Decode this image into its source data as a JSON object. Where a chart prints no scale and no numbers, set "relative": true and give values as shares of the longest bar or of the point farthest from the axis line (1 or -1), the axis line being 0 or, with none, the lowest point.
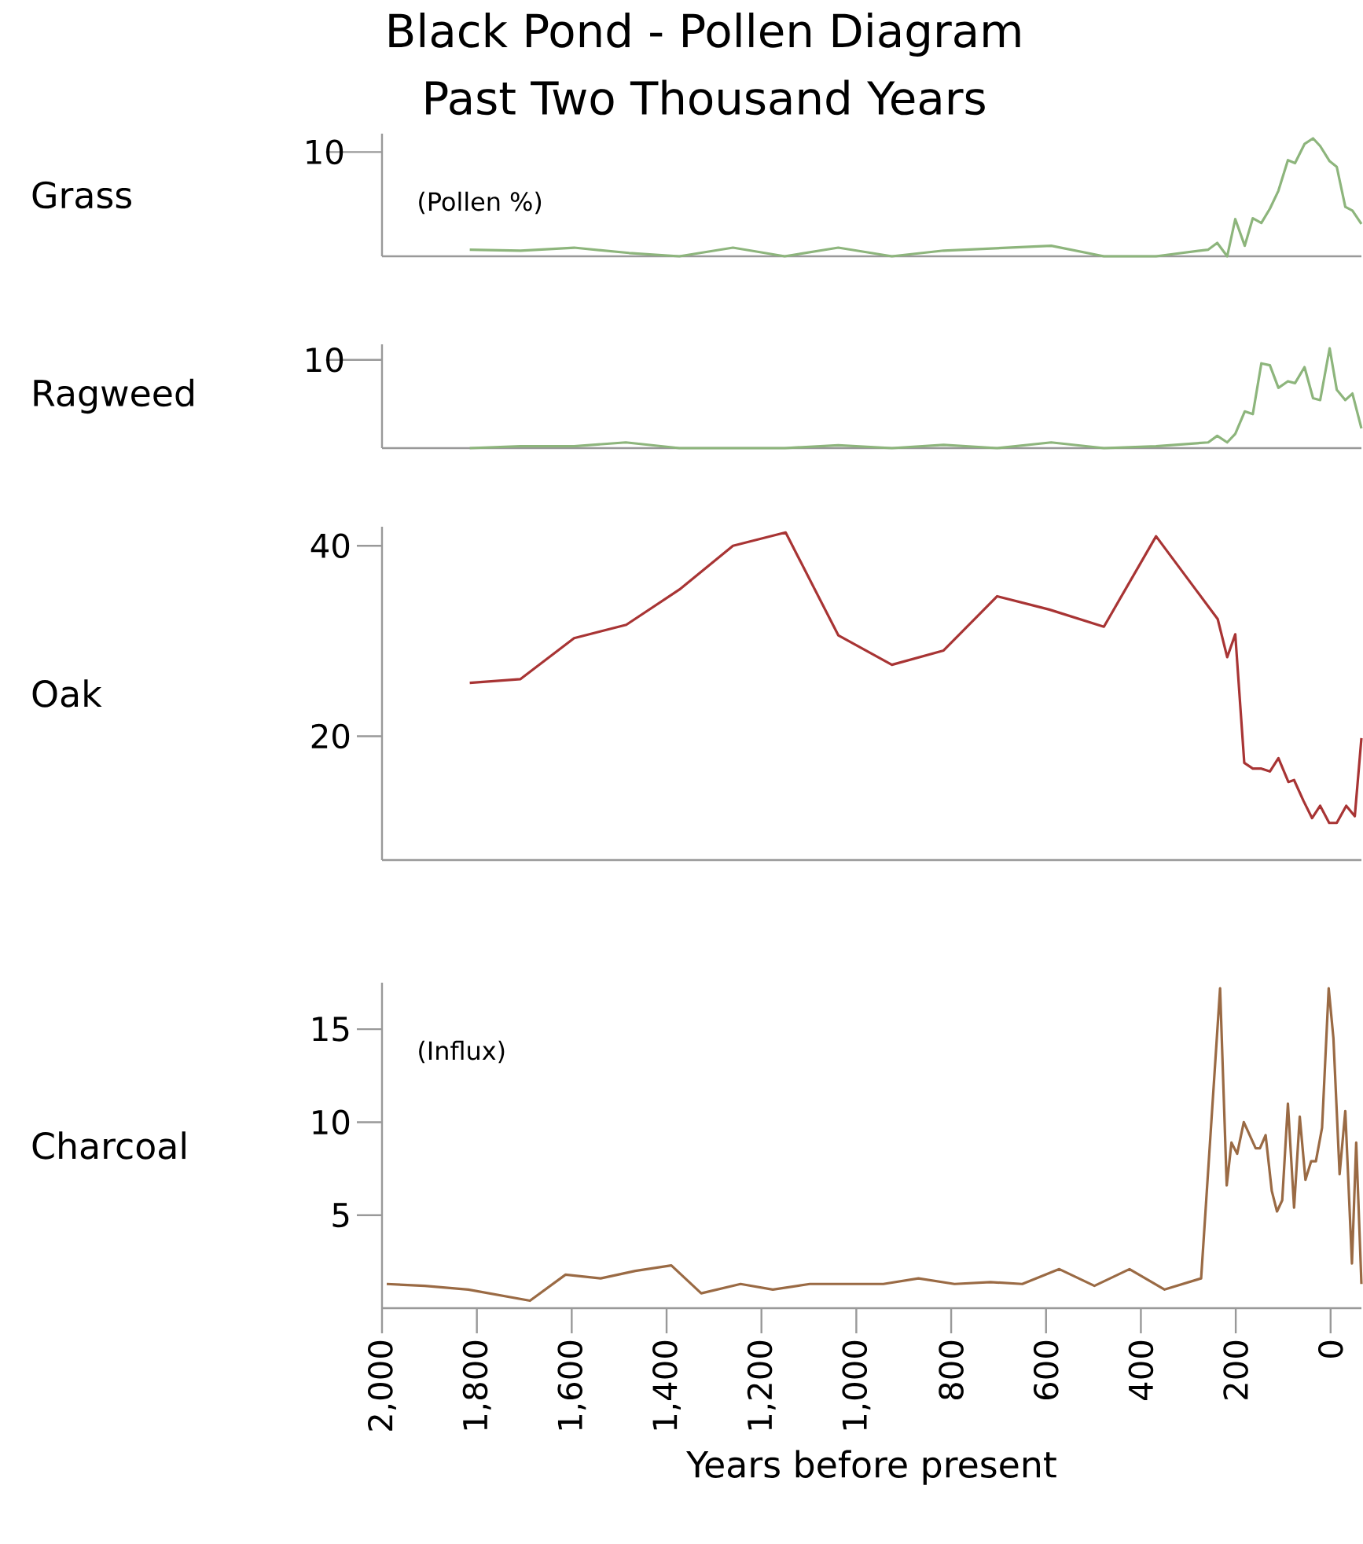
{
  "chart_data": [
    {
      "type": "line",
      "title": "Black Pond - Pollen Diagram",
      "subtitle": "Past Two Thousand Years",
      "ylabel": "Grass",
      "annotations": [
        "10",
        "(Pollen %)"
      ],
      "relative": true,
      "xlim": [
        2000,
        -65
      ],
      "tick_labels": false,
      "series": [
        {
          "color": "#8db57c",
          "x": [
            1815,
            1708,
            1595,
            1479,
            1373,
            1260,
            1151,
            1038,
            925,
            816,
            589,
            478,
            368,
            258,
            239,
            218,
            201,
            181,
            164,
            146,
            128,
            110,
            90,
            75,
            55,
            37,
            22,
            2,
            -13,
            -31,
            -46,
            -65
          ],
          "values": [
            0.056,
            0.048,
            0.073,
            0.028,
            0,
            0.073,
            0,
            0.073,
            0,
            0.048,
            0.089,
            0,
            0,
            0.056,
            0.113,
            0,
            0.315,
            0.089,
            0.323,
            0.282,
            0.403,
            0.556,
            0.815,
            0.79,
            0.952,
            1,
            0.935,
            0.806,
            0.758,
            0.419,
            0.387,
            0.274
          ]
        }
      ]
    },
    {
      "type": "line",
      "ylabel": "Ragweed",
      "annotations": [
        "10"
      ],
      "relative": true,
      "xlim": [
        2000,
        -65
      ],
      "tick_labels": false,
      "series": [
        {
          "color": "#8db57c",
          "x": [
            1815,
            1708,
            1595,
            1486,
            1373,
            1260,
            1151,
            1038,
            925,
            816,
            703,
            589,
            478,
            368,
            258,
            239,
            218,
            201,
            181,
            164,
            146,
            128,
            110,
            90,
            75,
            55,
            37,
            22,
            2,
            -13,
            -31,
            -46,
            -65
          ],
          "values": [
            0,
            0.019,
            0.019,
            0.057,
            0,
            0,
            0,
            0.028,
            0,
            0.033,
            0,
            0.057,
            0,
            0.019,
            0.057,
            0.123,
            0.057,
            0.142,
            0.368,
            0.34,
            0.849,
            0.83,
            0.604,
            0.67,
            0.651,
            0.811,
            0.5,
            0.481,
            1,
            0.585,
            0.481,
            0.547,
            0.198
          ]
        }
      ]
    },
    {
      "type": "line",
      "ylabel": "Oak",
      "xlim": [
        2000,
        -65
      ],
      "ylim": [
        7,
        42
      ],
      "yticks": [
        20,
        40
      ],
      "tick_labels": "y",
      "series": [
        {
          "color": "#a83434",
          "x": [
            1815,
            1708,
            1595,
            1485,
            1373,
            1260,
            1149,
            1038,
            925,
            816,
            703,
            593,
            478,
            368,
            238,
            218,
            201,
            182,
            164,
            146,
            128,
            110,
            89,
            77,
            57,
            39,
            22,
            3,
            -13,
            -33,
            -51,
            -65
          ],
          "values": [
            25.6,
            26.0,
            30.3,
            31.7,
            35.4,
            40.0,
            41.4,
            30.6,
            27.5,
            29.0,
            34.7,
            33.3,
            31.5,
            41.0,
            32.3,
            28.3,
            30.7,
            17.2,
            16.6,
            16.6,
            16.3,
            17.7,
            15.2,
            15.4,
            13.2,
            11.4,
            12.7,
            10.9,
            10.9,
            12.7,
            11.6,
            19.8
          ]
        }
      ]
    },
    {
      "type": "line",
      "ylabel": "Charcoal",
      "xlabel": "Years before present",
      "annotations": [
        "(Influx)"
      ],
      "xlim": [
        2000,
        -65
      ],
      "ylim": [
        0,
        17.5
      ],
      "yticks": [
        5,
        10,
        15
      ],
      "xticks": [
        {
          "value": 2000,
          "label": "2,000"
        },
        {
          "value": 1800,
          "label": "1,800"
        },
        {
          "value": 1600,
          "label": "1,600"
        },
        {
          "value": 1400,
          "label": "1,400"
        },
        {
          "value": 1200,
          "label": "1,200"
        },
        {
          "value": 1000,
          "label": "1,000"
        },
        800,
        600,
        400,
        200,
        0
      ],
      "series": [
        {
          "color": "#9a6a44",
          "x": [
            1990,
            1910,
            1818,
            1688,
            1613,
            1539,
            1466,
            1390,
            1327,
            1244,
            1176,
            1098,
            943,
            869,
            793,
            717,
            650,
            572,
            498,
            424,
            350,
            273,
            233,
            219,
            209,
            197,
            183,
            158,
            149,
            137,
            124,
            113,
            102,
            90,
            77,
            65,
            53,
            41,
            31,
            18,
            4,
            -6,
            -19,
            -31,
            -45,
            -54,
            -65
          ],
          "values": [
            1.3,
            1.2,
            1.0,
            0.4,
            1.8,
            1.6,
            2.0,
            2.3,
            0.8,
            1.3,
            1.0,
            1.3,
            1.3,
            1.6,
            1.3,
            1.4,
            1.3,
            2.1,
            1.2,
            2.1,
            1.0,
            1.6,
            17.2,
            6.6,
            8.9,
            8.3,
            10.0,
            8.6,
            8.6,
            9.3,
            6.3,
            5.2,
            5.8,
            11.0,
            5.4,
            10.3,
            6.9,
            7.9,
            7.9,
            9.7,
            17.2,
            14.5,
            7.2,
            10.6,
            2.4,
            8.9,
            1.3
          ]
        }
      ]
    }
  ]
}
